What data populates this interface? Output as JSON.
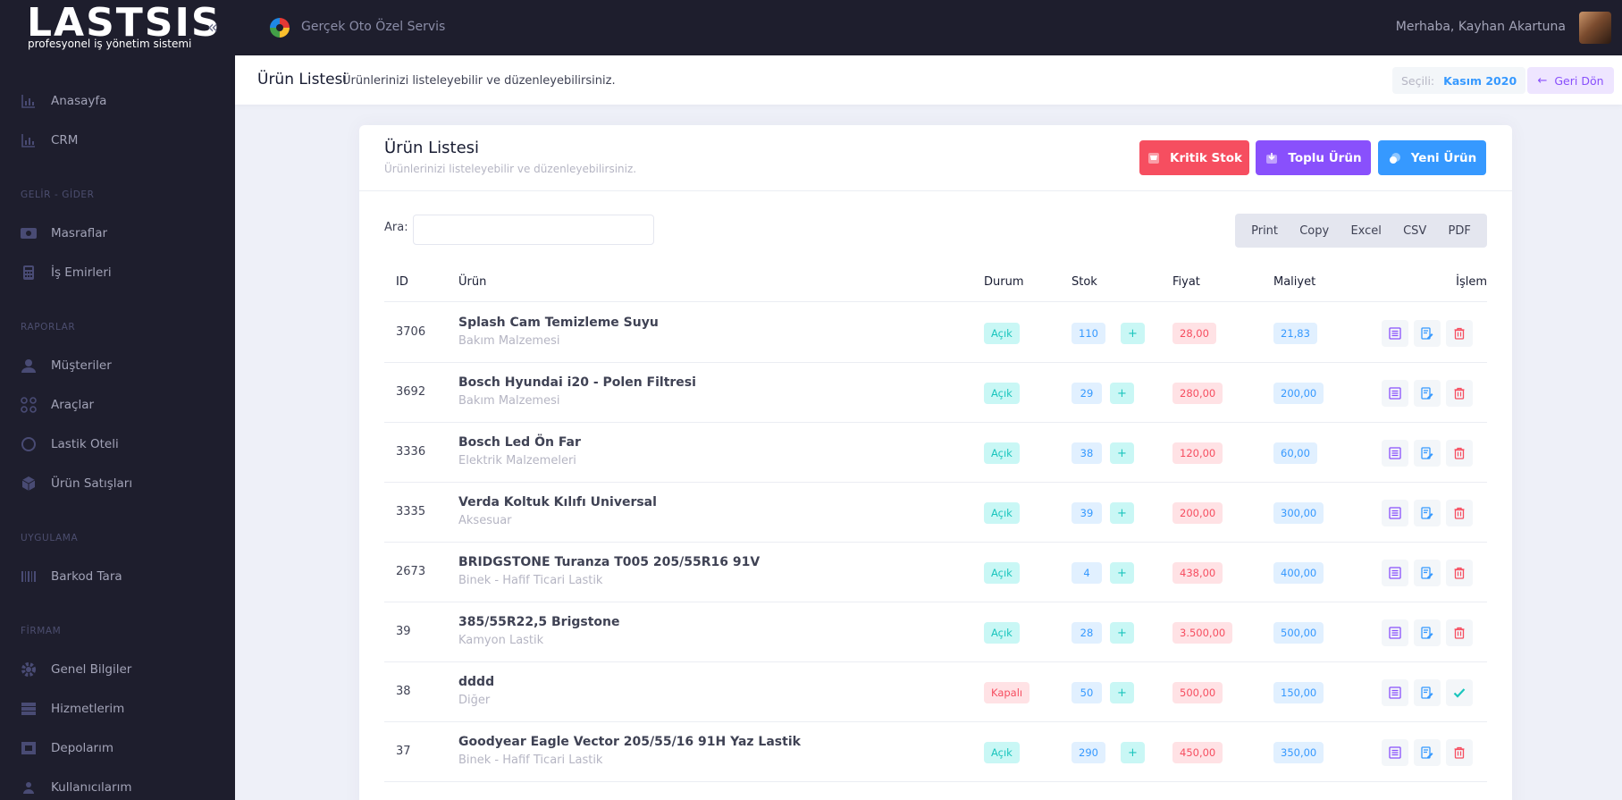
{
  "brand": {
    "logo": "LASTSIS",
    "tagline": "profesyonel iş yönetim sistemi"
  },
  "topbar": {
    "company": "Gerçek Oto Özel Servis",
    "greeting_prefix": "Merhaba,",
    "user_name": "Kayhan Akartuna"
  },
  "sidebar": {
    "items": [
      {
        "label": "Anasayfa",
        "icon": "chart-icon"
      },
      {
        "label": "CRM",
        "icon": "chart-icon"
      }
    ],
    "sections": [
      {
        "title": "GELİR - GİDER",
        "items": [
          {
            "label": "Masraflar",
            "icon": "money-icon"
          },
          {
            "label": "İş Emirleri",
            "icon": "calculator-icon"
          }
        ]
      },
      {
        "title": "RAPORLAR",
        "items": [
          {
            "label": "Müşteriler",
            "icon": "user-icon"
          },
          {
            "label": "Araçlar",
            "icon": "grid-icon"
          },
          {
            "label": "Lastik Oteli",
            "icon": "tire-icon"
          },
          {
            "label": "Ürün Satışları",
            "icon": "box-icon"
          }
        ]
      },
      {
        "title": "UYGULAMA",
        "items": [
          {
            "label": "Barkod Tara",
            "icon": "barcode-icon"
          }
        ]
      },
      {
        "title": "FİRMAM",
        "items": [
          {
            "label": "Genel Bilgiler",
            "icon": "gear-icon"
          },
          {
            "label": "Hizmetlerim",
            "icon": "list-icon"
          },
          {
            "label": "Depolarım",
            "icon": "warehouse-icon"
          },
          {
            "label": "Kullanıcılarım",
            "icon": "users-icon"
          }
        ]
      }
    ]
  },
  "subheader": {
    "title": "Ürün Listesi",
    "description": "Ürünlerinizi listeleyebilir ve düzenleyebilirsiniz.",
    "period_label": "Seçili:",
    "period_value": "Kasım 2020",
    "back_label": "Geri Dön"
  },
  "card": {
    "title": "Ürün Listesi",
    "subtitle": "Ürünlerinizi listeleyebilir ve düzenleyebilirsiniz.",
    "buttons": {
      "critical": "Kritik Stok",
      "bulk": "Toplu Ürün",
      "new": "Yeni Ürün"
    },
    "search_label": "Ara:",
    "search_value": "",
    "exports": [
      "Print",
      "Copy",
      "Excel",
      "CSV",
      "PDF"
    ]
  },
  "table": {
    "headers": {
      "id": "ID",
      "product": "Ürün",
      "status": "Durum",
      "stock": "Stok",
      "price": "Fiyat",
      "cost": "Maliyet",
      "action": "İşlem"
    },
    "plus": "+",
    "rows": [
      {
        "id": "3706",
        "name": "Splash Cam Temizleme Suyu",
        "category": "Bakım Malzemesi",
        "status": "Açık",
        "status_open": true,
        "stock": "110",
        "price": "28,00",
        "cost": "21,83"
      },
      {
        "id": "3692",
        "name": "Bosch Hyundai i20 - Polen Filtresi",
        "category": "Bakım Malzemesi",
        "status": "Açık",
        "status_open": true,
        "stock": "29",
        "price": "280,00",
        "cost": "200,00"
      },
      {
        "id": "3336",
        "name": "Bosch Led Ön Far",
        "category": "Elektrik Malzemeleri",
        "status": "Açık",
        "status_open": true,
        "stock": "38",
        "price": "120,00",
        "cost": "60,00"
      },
      {
        "id": "3335",
        "name": "Verda Koltuk Kılıfı Universal",
        "category": "Aksesuar",
        "status": "Açık",
        "status_open": true,
        "stock": "39",
        "price": "200,00",
        "cost": "300,00"
      },
      {
        "id": "2673",
        "name": "BRIDGSTONE Turanza T005 205/55R16 91V",
        "category": "Binek - Hafif Ticari Lastik",
        "status": "Açık",
        "status_open": true,
        "stock": "4",
        "price": "438,00",
        "cost": "400,00"
      },
      {
        "id": "39",
        "name": "385/55R22,5 Brigstone",
        "category": "Kamyon Lastik",
        "status": "Açık",
        "status_open": true,
        "stock": "28",
        "price": "3.500,00",
        "cost": "500,00"
      },
      {
        "id": "38",
        "name": "dddd",
        "category": "Diğer",
        "status": "Kapalı",
        "status_open": false,
        "stock": "50",
        "price": "500,00",
        "cost": "150,00"
      },
      {
        "id": "37",
        "name": "Goodyear Eagle Vector 205/55/16 91H Yaz Lastik",
        "category": "Binek - Hafif Ticari Lastik",
        "status": "Açık",
        "status_open": true,
        "stock": "290",
        "price": "450,00",
        "cost": "350,00"
      }
    ]
  },
  "colors": {
    "sidebar": "#1e1e2d",
    "primary": "#3699ff",
    "danger": "#f64e60",
    "purple": "#8950fc",
    "success": "#1bc5bd"
  }
}
